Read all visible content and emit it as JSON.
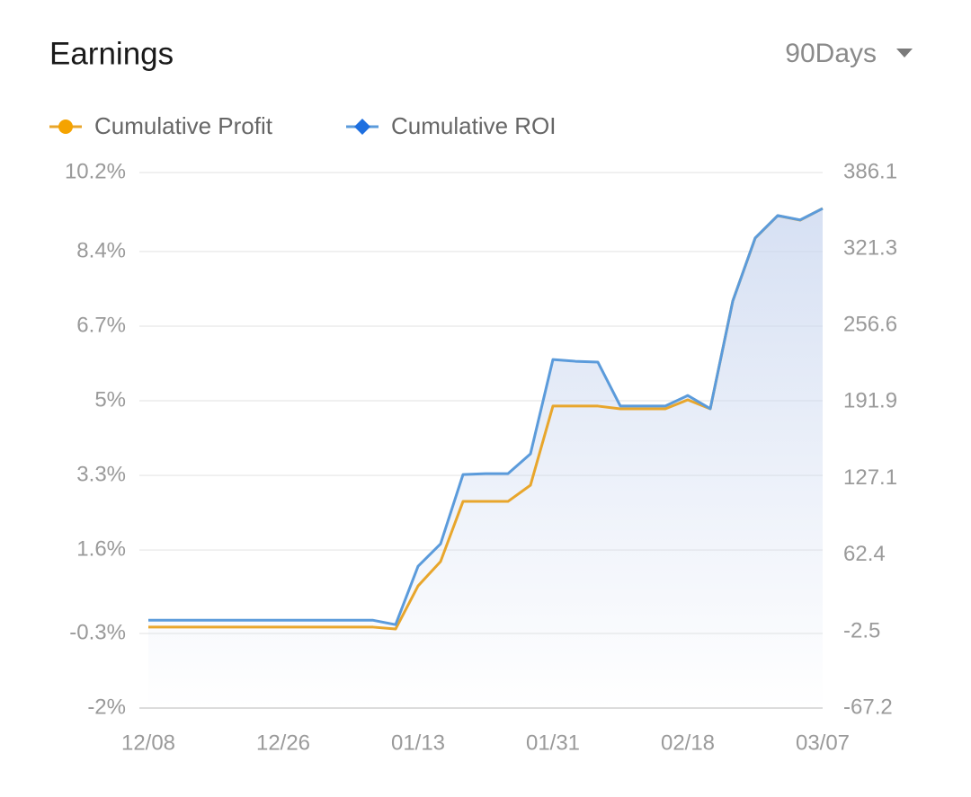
{
  "controls": {
    "period": "90Days"
  },
  "chart_data": {
    "type": "line",
    "title": "Earnings",
    "categories": [
      "12/08",
      null,
      null,
      null,
      null,
      null,
      "12/26",
      null,
      null,
      null,
      null,
      null,
      "01/13",
      null,
      null,
      null,
      null,
      null,
      "01/31",
      null,
      null,
      null,
      null,
      null,
      "02/18",
      null,
      null,
      null,
      null,
      null,
      "03/07"
    ],
    "series": [
      {
        "name": "Cumulative Profit",
        "color": "#e8a62c",
        "marker_color": "#f5a300",
        "marker": "circle",
        "axis": "y2",
        "values": [
          1.3,
          1.3,
          1.3,
          1.3,
          1.3,
          1.3,
          1.3,
          1.3,
          1.3,
          1.3,
          1.3,
          -0.3,
          36.2,
          56.8,
          107.7,
          107.7,
          107.7,
          121.4,
          188.4,
          188.4,
          188.4,
          186.1,
          186.1,
          186.1,
          193.7,
          186.1,
          277.3,
          330.6,
          349.6,
          345.8,
          355.7
        ]
      },
      {
        "name": "Cumulative ROI",
        "color": "#5b9bdb",
        "marker_color": "#1e6fe0",
        "marker": "diamond",
        "axis": "y",
        "values": [
          0.0,
          0.0,
          0.0,
          0.0,
          0.0,
          0.0,
          0.0,
          0.0,
          0.0,
          0.0,
          0.0,
          -0.1,
          1.23,
          1.74,
          3.32,
          3.34,
          3.34,
          3.79,
          5.94,
          5.9,
          5.88,
          4.88,
          4.88,
          4.88,
          5.12,
          4.82,
          7.27,
          8.71,
          9.22,
          9.12,
          9.38
        ]
      }
    ],
    "ylim": [
      -2,
      10.2
    ],
    "yticks": [
      {
        "value": -2,
        "label": "-2%"
      },
      {
        "value": -0.3,
        "label": "-0.3%"
      },
      {
        "value": 1.6,
        "label": "1.6%"
      },
      {
        "value": 3.3,
        "label": "3.3%"
      },
      {
        "value": 5,
        "label": "5%"
      },
      {
        "value": 6.7,
        "label": "6.7%"
      },
      {
        "value": 8.4,
        "label": "8.4%"
      },
      {
        "value": 10.2,
        "label": "10.2%"
      }
    ],
    "y2lim": [
      -67.2,
      386.1
    ],
    "y2ticks": [
      -67.2,
      -2.5,
      62.4,
      127.1,
      191.9,
      256.6,
      321.3,
      386.1
    ],
    "grid": true,
    "area_fill": "#c9d6ef"
  }
}
